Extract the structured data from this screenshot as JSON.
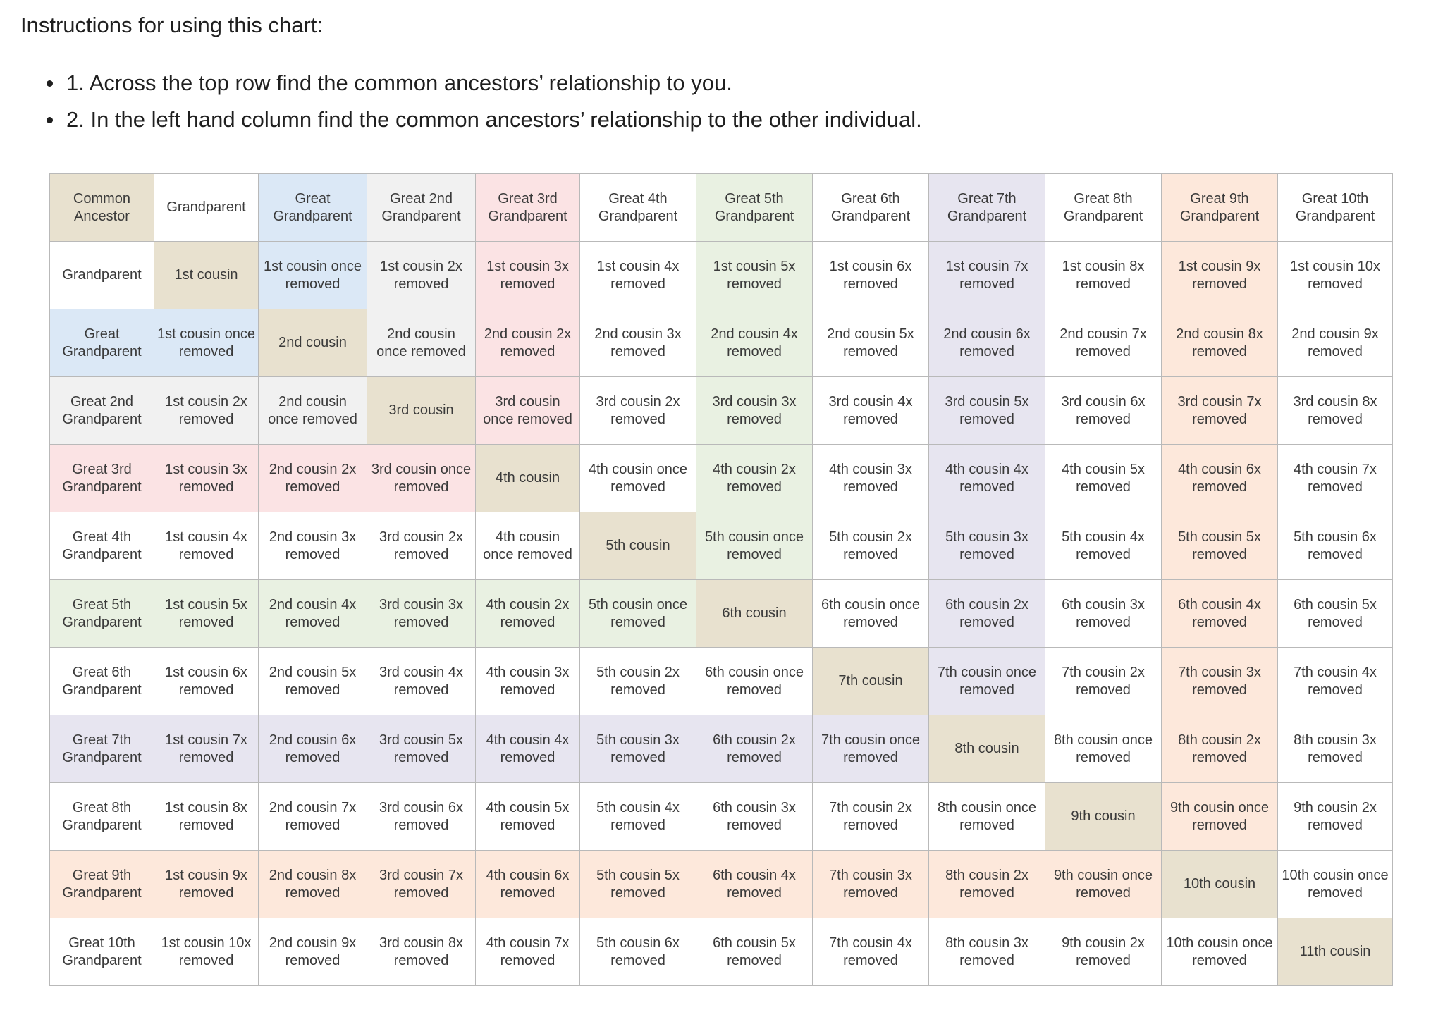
{
  "instructions": {
    "heading": "Instructions for using this chart:",
    "steps": [
      "1. Across the top row find the common ancestors’ relationship to you.",
      "2. In the left hand column find the common ancestors’ relationship to the other individual."
    ]
  },
  "chart": {
    "corner": "Common Ancestor",
    "headers": [
      "Grandparent",
      "Great Grandparent",
      "Great 2nd Grandparent",
      "Great 3rd Grandparent",
      "Great 4th Grandparent",
      "Great 5th Grandparent",
      "Great 6th Grandparent",
      "Great 7th Grandparent",
      "Great 8th Grandparent",
      "Great 9th Grandparent",
      "Great 10th Grandparent"
    ],
    "colors": {
      "diagonal": "#e8e1cf",
      "grandparent": "#ffffff",
      "great_grandparent": "#dbe8f6",
      "great_2nd": "#f1f1f1",
      "great_3rd": "#fbe3e4",
      "great_5th": "#e9f1e2",
      "great_7th": "#e7e5f0",
      "great_9th": "#fde8db"
    },
    "rows": [
      {
        "label": "Grandparent",
        "cells": [
          "1st cousin",
          "1st cousin once removed",
          "1st cousin 2x removed",
          "1st cousin 3x removed",
          "1st cousin 4x removed",
          "1st cousin 5x removed",
          "1st cousin 6x removed",
          "1st cousin 7x removed",
          "1st cousin 8x removed",
          "1st cousin 9x removed",
          "1st cousin 10x removed"
        ]
      },
      {
        "label": "Great Grandparent",
        "cells": [
          "1st cousin once removed",
          "2nd cousin",
          "2nd cousin once removed",
          "2nd cousin 2x removed",
          "2nd cousin 3x removed",
          "2nd cousin 4x removed",
          "2nd cousin 5x removed",
          "2nd cousin 6x removed",
          "2nd cousin 7x removed",
          "2nd cousin 8x removed",
          "2nd cousin 9x removed"
        ]
      },
      {
        "label": "Great 2nd Grandparent",
        "cells": [
          "1st cousin 2x removed",
          "2nd cousin once removed",
          "3rd cousin",
          "3rd cousin once removed",
          "3rd cousin 2x removed",
          "3rd cousin 3x removed",
          "3rd cousin 4x removed",
          "3rd cousin 5x removed",
          "3rd cousin 6x removed",
          "3rd cousin 7x removed",
          "3rd cousin 8x removed"
        ]
      },
      {
        "label": "Great 3rd Grandparent",
        "cells": [
          "1st cousin 3x removed",
          "2nd cousin 2x removed",
          "3rd cousin once removed",
          "4th cousin",
          "4th cousin once removed",
          "4th cousin 2x removed",
          "4th cousin 3x removed",
          "4th cousin 4x removed",
          "4th cousin 5x removed",
          "4th cousin 6x removed",
          "4th cousin 7x removed"
        ]
      },
      {
        "label": "Great 4th Grandparent",
        "cells": [
          "1st cousin 4x removed",
          "2nd cousin 3x removed",
          "3rd cousin 2x removed",
          "4th cousin once removed",
          "5th cousin",
          "5th cousin once removed",
          "5th cousin 2x removed",
          "5th cousin 3x removed",
          "5th cousin 4x removed",
          "5th cousin 5x removed",
          "5th cousin 6x removed"
        ]
      },
      {
        "label": "Great 5th Grandparent",
        "cells": [
          "1st cousin 5x removed",
          "2nd cousin 4x removed",
          "3rd cousin 3x removed",
          "4th cousin 2x removed",
          "5th cousin once removed",
          "6th cousin",
          "6th cousin once removed",
          "6th cousin 2x removed",
          "6th cousin 3x removed",
          "6th cousin 4x removed",
          "6th cousin 5x removed"
        ]
      },
      {
        "label": "Great 6th Grandparent",
        "cells": [
          "1st cousin 6x removed",
          "2nd cousin 5x removed",
          "3rd cousin 4x removed",
          "4th cousin 3x removed",
          "5th cousin 2x removed",
          "6th cousin once removed",
          "7th cousin",
          "7th cousin once removed",
          "7th cousin 2x removed",
          "7th cousin 3x removed",
          "7th cousin 4x removed"
        ]
      },
      {
        "label": "Great 7th Grandparent",
        "cells": [
          "1st cousin 7x removed",
          "2nd cousin 6x removed",
          "3rd cousin 5x removed",
          "4th cousin 4x removed",
          "5th cousin 3x removed",
          "6th cousin 2x removed",
          "7th cousin once removed",
          "8th cousin",
          "8th cousin once removed",
          "8th cousin 2x removed",
          "8th cousin 3x removed"
        ]
      },
      {
        "label": "Great 8th Grandparent",
        "cells": [
          "1st cousin 8x removed",
          "2nd cousin 7x removed",
          "3rd cousin 6x removed",
          "4th cousin 5x removed",
          "5th cousin 4x removed",
          "6th cousin 3x removed",
          "7th cousin 2x removed",
          "8th cousin once removed",
          "9th cousin",
          "9th cousin once removed",
          "9th cousin 2x removed"
        ]
      },
      {
        "label": "Great 9th Grandparent",
        "cells": [
          "1st cousin 9x removed",
          "2nd cousin 8x removed",
          "3rd cousin 7x removed",
          "4th cousin 6x removed",
          "5th cousin 5x removed",
          "6th cousin 4x removed",
          "7th cousin 3x removed",
          "8th cousin 2x removed",
          "9th cousin once removed",
          "10th cousin",
          "10th cousin once removed"
        ]
      },
      {
        "label": "Great 10th Grandparent",
        "cells": [
          "1st cousin 10x removed",
          "2nd cousin 9x removed",
          "3rd cousin 8x removed",
          "4th cousin 7x removed",
          "5th cousin 6x removed",
          "6th cousin 5x removed",
          "7th cousin 4x removed",
          "8th cousin 3x removed",
          "9th cousin 2x removed",
          "10th cousin once removed",
          "11th cousin"
        ]
      }
    ]
  }
}
